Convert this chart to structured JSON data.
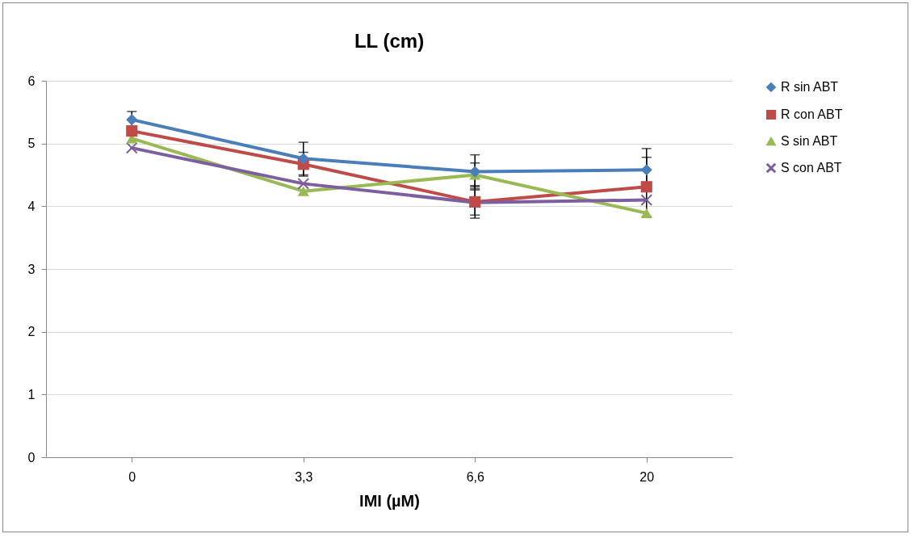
{
  "chart_data": {
    "type": "line",
    "title": "LL (cm)",
    "xlabel": "IMI (µM)",
    "categories": [
      "0",
      "3,3",
      "6,6",
      "20"
    ],
    "series": [
      {
        "name": "R sin ABT",
        "color": "#4a7ebb",
        "marker": "diamond",
        "values": [
          5.38,
          4.76,
          4.55,
          4.58
        ],
        "errors": [
          0.13,
          0.26,
          0.27,
          0.34
        ]
      },
      {
        "name": "R con ABT",
        "color": "#be4b48",
        "marker": "square",
        "values": [
          5.2,
          4.67,
          4.07,
          4.31
        ],
        "errors": [
          null,
          0.19,
          0.26,
          0.47
        ]
      },
      {
        "name": "S sin ABT",
        "color": "#98b954",
        "marker": "triangle",
        "values": [
          5.08,
          4.24,
          4.5,
          3.89
        ],
        "errors": [
          null,
          null,
          0.19,
          null
        ]
      },
      {
        "name": "S con ABT",
        "color": "#7d5fa0",
        "marker": "cross",
        "values": [
          4.93,
          4.36,
          4.06,
          4.1
        ],
        "errors": [
          null,
          null,
          0.2,
          null
        ]
      }
    ],
    "ylim": [
      0,
      6
    ],
    "yticks": [
      0,
      1,
      2,
      3,
      4,
      5,
      6
    ],
    "grid": "y",
    "legend": "right"
  }
}
